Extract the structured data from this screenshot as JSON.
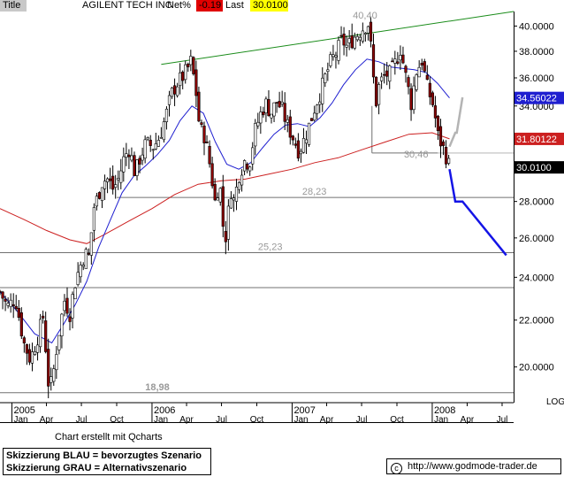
{
  "header": {
    "title_label": "Title",
    "instrument": "AGILENT TECH INC",
    "net_label": "Net%",
    "net_value": "-0.19",
    "last_label": "Last",
    "last_value": "30.0100"
  },
  "footer": {
    "credit": "Chart erstellt mit Qcharts",
    "legend_blue": "Skizzierung BLAU = bevorzugtes Szenario",
    "legend_grey": "Skizzierung GRAU = Alternativszenario",
    "copyright_symbol": "c",
    "url": "http://www.godmode-trader.de"
  },
  "colors": {
    "up_candle": "#ffffff",
    "down_candle": "#8b0000",
    "ma_short": "#1f1fd0",
    "ma_long": "#cc2020",
    "trendline": "#1a8c1a",
    "scenario_blue": "#1414e6",
    "scenario_grey": "#b4b4b4",
    "support_line": "#707070",
    "net_badge": "#e00000",
    "last_badge": "#ffff00"
  },
  "chart_data": {
    "type": "candlestick",
    "y_scale": "log",
    "scale_label": "LOG",
    "ylim": [
      18.6,
      41.2
    ],
    "y_ticks": [
      "40.0000",
      "38.0000",
      "36.0000",
      "34.0000",
      "32.0000",
      "30.0000",
      "28.0000",
      "26.0000",
      "24.0000",
      "22.0000",
      "20.0000"
    ],
    "x_range": [
      "2004-12-01",
      "2008-07-31"
    ],
    "x_ticks": [
      {
        "date": "2005-01-01",
        "label": "Jan",
        "year": "2005"
      },
      {
        "date": "2005-04-01",
        "label": "Apr"
      },
      {
        "date": "2005-07-01",
        "label": "Jul"
      },
      {
        "date": "2005-10-01",
        "label": "Oct"
      },
      {
        "date": "2006-01-01",
        "label": "Jan",
        "year": "2006"
      },
      {
        "date": "2006-04-01",
        "label": "Apr"
      },
      {
        "date": "2006-07-01",
        "label": "Jul"
      },
      {
        "date": "2006-10-01",
        "label": "Oct"
      },
      {
        "date": "2007-01-01",
        "label": "Jan",
        "year": "2007"
      },
      {
        "date": "2007-04-01",
        "label": "Apr"
      },
      {
        "date": "2007-07-01",
        "label": "Jul"
      },
      {
        "date": "2007-10-01",
        "label": "Oct"
      },
      {
        "date": "2008-01-01",
        "label": "Jan",
        "year": "2008"
      },
      {
        "date": "2008-04-01",
        "label": "Apr"
      },
      {
        "date": "2008-07-01",
        "label": "Jul"
      }
    ],
    "price_path": [
      [
        "2004-12-01",
        23.3
      ],
      [
        "2004-12-20",
        22.6
      ],
      [
        "2005-01-10",
        23.0
      ],
      [
        "2005-02-01",
        21.0
      ],
      [
        "2005-02-18",
        20.3
      ],
      [
        "2005-03-10",
        21.3
      ],
      [
        "2005-03-24",
        22.2
      ],
      [
        "2005-04-05",
        19.4
      ],
      [
        "2005-04-15",
        19.3
      ],
      [
        "2005-05-01",
        21.2
      ],
      [
        "2005-05-18",
        22.9
      ],
      [
        "2005-06-01",
        22.3
      ],
      [
        "2005-06-14",
        23.7
      ],
      [
        "2005-06-25",
        24.4
      ],
      [
        "2005-07-10",
        25.2
      ],
      [
        "2005-07-22",
        25.0
      ],
      [
        "2005-08-01",
        27.6
      ],
      [
        "2005-08-12",
        28.2
      ],
      [
        "2005-08-25",
        29.2
      ],
      [
        "2005-09-08",
        29.3
      ],
      [
        "2005-09-22",
        28.7
      ],
      [
        "2005-10-07",
        29.4
      ],
      [
        "2005-10-20",
        30.6
      ],
      [
        "2005-11-03",
        31.2
      ],
      [
        "2005-11-18",
        29.6
      ],
      [
        "2005-12-02",
        30.7
      ],
      [
        "2005-12-16",
        31.5
      ],
      [
        "2006-01-05",
        31.3
      ],
      [
        "2006-01-20",
        31.9
      ],
      [
        "2006-02-06",
        33.3
      ],
      [
        "2006-02-20",
        34.8
      ],
      [
        "2006-03-07",
        35.6
      ],
      [
        "2006-03-20",
        36.0
      ],
      [
        "2006-04-03",
        36.6
      ],
      [
        "2006-04-12",
        37.2
      ],
      [
        "2006-04-24",
        35.4
      ],
      [
        "2006-05-05",
        32.5
      ],
      [
        "2006-05-18",
        32.0
      ],
      [
        "2006-06-02",
        30.0
      ],
      [
        "2006-06-14",
        28.0
      ],
      [
        "2006-06-26",
        29.2
      ],
      [
        "2006-07-06",
        26.4
      ],
      [
        "2006-07-14",
        26.0
      ],
      [
        "2006-07-24",
        28.8
      ],
      [
        "2006-08-03",
        28.0
      ],
      [
        "2006-08-16",
        29.6
      ],
      [
        "2006-08-30",
        30.4
      ],
      [
        "2006-09-12",
        30.3
      ],
      [
        "2006-09-26",
        32.3
      ],
      [
        "2006-10-10",
        33.4
      ],
      [
        "2006-10-24",
        34.2
      ],
      [
        "2006-11-07",
        33.5
      ],
      [
        "2006-11-21",
        34.3
      ],
      [
        "2006-12-05",
        33.8
      ],
      [
        "2006-12-19",
        32.7
      ],
      [
        "2007-01-05",
        31.8
      ],
      [
        "2007-01-19",
        31.0
      ],
      [
        "2007-02-02",
        31.8
      ],
      [
        "2007-02-16",
        32.8
      ],
      [
        "2007-03-02",
        34.0
      ],
      [
        "2007-03-16",
        35.0
      ],
      [
        "2007-03-30",
        36.2
      ],
      [
        "2007-04-13",
        37.3
      ],
      [
        "2007-04-27",
        37.9
      ],
      [
        "2007-05-11",
        38.9
      ],
      [
        "2007-05-25",
        38.3
      ],
      [
        "2007-06-08",
        39.0
      ],
      [
        "2007-06-22",
        39.4
      ],
      [
        "2007-07-06",
        39.9
      ],
      [
        "2007-07-18",
        40.2
      ],
      [
        "2007-07-27",
        37.8
      ],
      [
        "2007-08-06",
        34.0
      ],
      [
        "2007-08-16",
        35.5
      ],
      [
        "2007-08-30",
        36.2
      ],
      [
        "2007-09-13",
        36.3
      ],
      [
        "2007-09-27",
        37.1
      ],
      [
        "2007-10-10",
        38.2
      ],
      [
        "2007-10-24",
        36.1
      ],
      [
        "2007-11-07",
        34.2
      ],
      [
        "2007-11-21",
        36.5
      ],
      [
        "2007-12-05",
        37.3
      ],
      [
        "2007-12-19",
        35.3
      ],
      [
        "2008-01-04",
        34.0
      ],
      [
        "2008-01-16",
        32.0
      ],
      [
        "2008-01-28",
        31.3
      ],
      [
        "2008-02-08",
        30.6
      ],
      [
        "2008-02-15",
        30.01
      ]
    ],
    "ma_short": [
      [
        "2004-12-01",
        23.3
      ],
      [
        "2005-01-15",
        22.4
      ],
      [
        "2005-03-01",
        21.4
      ],
      [
        "2005-04-15",
        21.0
      ],
      [
        "2005-05-15",
        21.8
      ],
      [
        "2005-06-15",
        22.7
      ],
      [
        "2005-07-15",
        23.8
      ],
      [
        "2005-08-15",
        25.5
      ],
      [
        "2005-09-15",
        27.0
      ],
      [
        "2005-10-15",
        28.5
      ],
      [
        "2005-11-15",
        29.5
      ],
      [
        "2005-12-15",
        30.1
      ],
      [
        "2006-01-15",
        30.8
      ],
      [
        "2006-02-15",
        31.7
      ],
      [
        "2006-03-15",
        33.0
      ],
      [
        "2006-04-15",
        34.0
      ],
      [
        "2006-05-15",
        33.5
      ],
      [
        "2006-06-15",
        31.6
      ],
      [
        "2006-07-15",
        30.2
      ],
      [
        "2006-08-15",
        29.9
      ],
      [
        "2006-09-15",
        30.3
      ],
      [
        "2006-10-15",
        31.2
      ],
      [
        "2006-11-15",
        32.1
      ],
      [
        "2006-12-15",
        32.7
      ],
      [
        "2007-01-15",
        32.8
      ],
      [
        "2007-02-15",
        32.6
      ],
      [
        "2007-03-15",
        33.2
      ],
      [
        "2007-04-15",
        34.2
      ],
      [
        "2007-05-15",
        35.5
      ],
      [
        "2007-06-15",
        36.6
      ],
      [
        "2007-07-15",
        37.4
      ],
      [
        "2007-08-15",
        37.2
      ],
      [
        "2007-09-15",
        36.8
      ],
      [
        "2007-10-15",
        36.7
      ],
      [
        "2007-11-15",
        36.6
      ],
      [
        "2007-12-15",
        36.4
      ],
      [
        "2008-01-15",
        35.6
      ],
      [
        "2008-02-15",
        34.56
      ]
    ],
    "ma_long": [
      [
        "2004-12-01",
        27.6
      ],
      [
        "2005-02-01",
        27.0
      ],
      [
        "2005-04-01",
        26.4
      ],
      [
        "2005-06-01",
        25.9
      ],
      [
        "2005-07-15",
        25.7
      ],
      [
        "2005-09-01",
        26.2
      ],
      [
        "2005-11-01",
        26.9
      ],
      [
        "2006-01-01",
        27.6
      ],
      [
        "2006-03-01",
        28.4
      ],
      [
        "2006-05-01",
        29.0
      ],
      [
        "2006-07-01",
        29.2
      ],
      [
        "2006-09-01",
        29.3
      ],
      [
        "2006-11-01",
        29.6
      ],
      [
        "2007-01-01",
        29.9
      ],
      [
        "2007-03-01",
        30.3
      ],
      [
        "2007-05-01",
        30.6
      ],
      [
        "2007-07-01",
        31.1
      ],
      [
        "2007-09-01",
        31.6
      ],
      [
        "2007-11-01",
        32.1
      ],
      [
        "2008-01-01",
        32.2
      ],
      [
        "2008-02-15",
        31.8
      ]
    ],
    "price_badges": [
      {
        "label": "34.56022",
        "value": 34.56,
        "color": "#1f1fd0"
      },
      {
        "label": "31.80122",
        "value": 31.8,
        "color": "#cc2020"
      },
      {
        "label": "30.0100",
        "value": 30.01,
        "color": "#000000"
      }
    ],
    "horizontal_lines": [
      {
        "from": "2007-07-28",
        "value": 30.9,
        "color": "#707070"
      },
      {
        "from": "2008-01-15",
        "value": 30.9,
        "color": "#d0d0d0"
      },
      {
        "from": "2005-10-01",
        "value": 28.23,
        "color": "#707070"
      },
      {
        "from": "2004-12-01",
        "value": 25.23,
        "color": "#707070"
      },
      {
        "from": "2004-12-01",
        "value": 23.5,
        "color": "#707070"
      },
      {
        "from": "2004-12-01",
        "value": 18.98,
        "color": "#707070"
      }
    ],
    "vertical_marker": {
      "date": "2007-07-28",
      "from": 30.9,
      "to": 34.0
    },
    "trendline": {
      "start": [
        "2006-01-25",
        37.0
      ],
      "end": [
        "2008-07-31",
        41.2
      ],
      "color": "#1a8c1a"
    },
    "blue_scenario": [
      [
        "2008-02-15",
        29.9
      ],
      [
        "2008-03-01",
        28.0
      ],
      [
        "2008-03-20",
        28.0
      ],
      [
        "2008-07-12",
        25.1
      ]
    ],
    "grey_scenario": [
      [
        "2008-02-15",
        31.3
      ],
      [
        "2008-03-01",
        32.2
      ],
      [
        "2008-03-05",
        32.2
      ],
      [
        "2008-03-20",
        34.6
      ]
    ],
    "annotations": [
      {
        "text": "40,40",
        "date": "2007-07-10",
        "value": 40.4
      },
      {
        "text": "30,46",
        "date": "2007-11-20",
        "value": 30.46
      },
      {
        "text": "28,23",
        "date": "2007-02-28",
        "value": 28.23
      },
      {
        "text": "25,23",
        "date": "2006-11-05",
        "value": 25.23
      },
      {
        "text": "18,98",
        "date": "2006-01-15",
        "value": 18.98
      }
    ]
  }
}
